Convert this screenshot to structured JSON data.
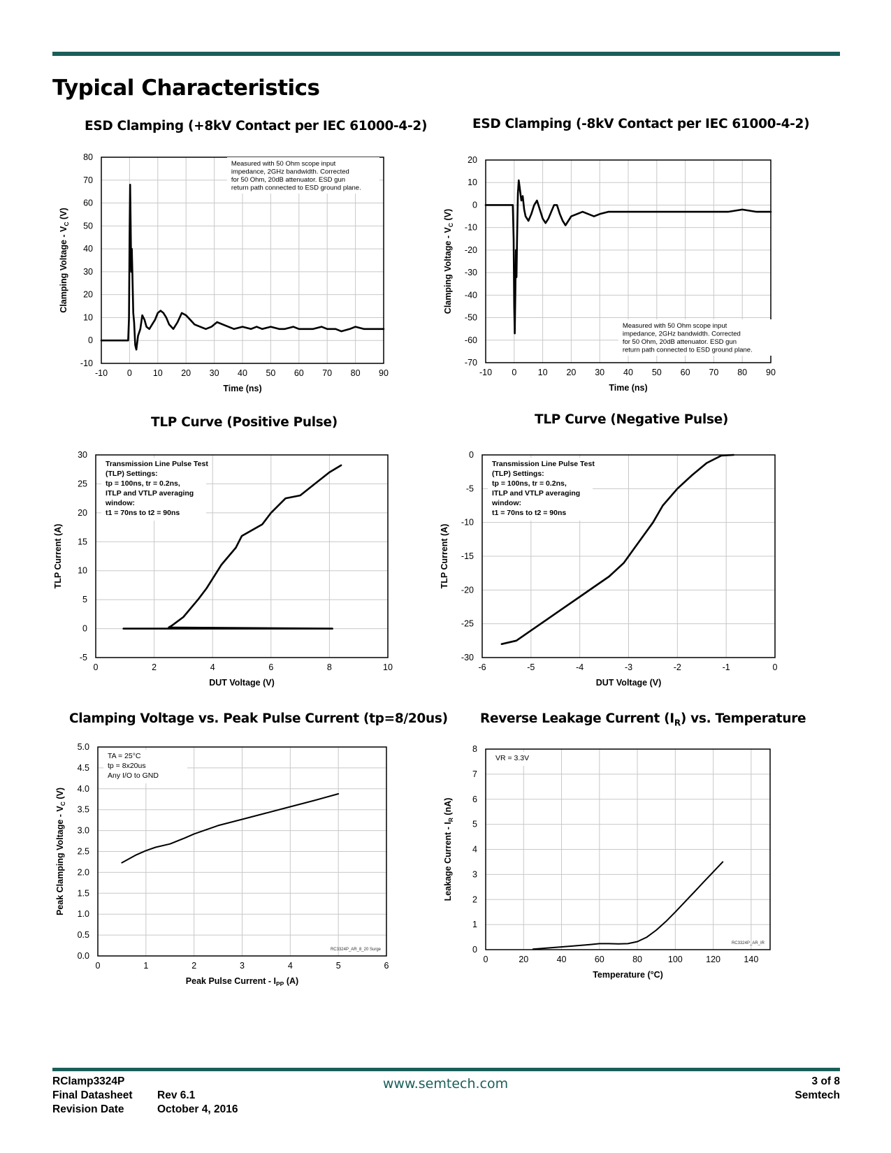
{
  "page": {
    "title": "Typical Characteristics",
    "accent_color": "#1a5e5a"
  },
  "footer": {
    "product": "RClamp3324P",
    "doc_type": "Final Datasheet",
    "rev_label": "Rev 6.1",
    "date_label": "Revision Date",
    "date": "October 4, 2016",
    "website": "www.semtech.com",
    "page_num": "3 of 8",
    "company": "Semtech"
  },
  "chart_data": [
    {
      "id": "esd-pos",
      "type": "line",
      "title": "ESD Clamping (+8kV Contact per IEC 61000-4-2)",
      "xlabel": "Time (ns)",
      "ylabel": "Clamping Voltage - V",
      "ylabel_sub": "C",
      "ylabel_suffix": " (V)",
      "xlim": [
        -10,
        90
      ],
      "ylim": [
        -10,
        80
      ],
      "xticks": [
        -10,
        0,
        10,
        20,
        30,
        40,
        50,
        60,
        70,
        80,
        90
      ],
      "yticks": [
        -10,
        0,
        10,
        20,
        30,
        40,
        50,
        60,
        70,
        80
      ],
      "grid": true,
      "annotation": [
        "Measured with 50 Ohm scope input",
        "impedance, 2GHz bandwidth. Corrected",
        "for 50 Ohm, 20dB attenuator. ESD gun",
        "return path connected to ESD ground plane."
      ],
      "annotation_position": "top-right",
      "series": [
        {
          "x": [
            -10,
            -0.5,
            -0.2,
            0,
            0.2,
            0.4,
            0.6,
            0.8,
            1.0,
            1.3,
            1.6,
            2.0,
            2.4,
            3.0,
            3.8,
            4.5,
            5.3,
            6.0,
            7.0,
            8.0,
            9.0,
            10.0,
            11.0,
            12.0,
            13.0,
            14.0,
            15.5,
            17.0,
            18.5,
            20.0,
            21.5,
            23.0,
            25.0,
            27.0,
            29.0,
            31.0,
            33.0,
            35.0,
            37.0,
            40.0,
            43.0,
            45.0,
            47.0,
            50.0,
            53.0,
            55.0,
            58.0,
            60.0,
            63.0,
            65.0,
            68.0,
            70.0,
            73.0,
            75.0,
            78.0,
            80.0,
            83.0,
            85.0,
            88.0,
            90.0
          ],
          "y": [
            0,
            0,
            10,
            45,
            68,
            50,
            30,
            40,
            30,
            12,
            8,
            -2,
            -4,
            2,
            5,
            11,
            9,
            6,
            5,
            7,
            9,
            12,
            13,
            12,
            10,
            7,
            5,
            8,
            12,
            11,
            9,
            7,
            6,
            5,
            6,
            8,
            7,
            6,
            5,
            6,
            5,
            6,
            5,
            6,
            5,
            5,
            6,
            5,
            5,
            5,
            6,
            5,
            5,
            4,
            5,
            6,
            5,
            5,
            5,
            5
          ]
        }
      ]
    },
    {
      "id": "esd-neg",
      "type": "line",
      "title": "ESD Clamping (-8kV Contact per IEC 61000-4-2)",
      "xlabel": "Time (ns)",
      "ylabel": "Clamping Voltage - V",
      "ylabel_sub": "C",
      "ylabel_suffix": " (V)",
      "xlim": [
        -10,
        90
      ],
      "ylim": [
        -70,
        20
      ],
      "xticks": [
        -10,
        0,
        10,
        20,
        30,
        40,
        50,
        60,
        70,
        80,
        90
      ],
      "yticks": [
        -70,
        -60,
        -50,
        -40,
        -30,
        -20,
        -10,
        0,
        10,
        20
      ],
      "grid": true,
      "annotation": [
        "Measured with 50 Ohm scope input",
        "impedance, 2GHz bandwidth. Corrected",
        "for 50 Ohm, 20dB attenuator. ESD gun",
        "return path connected to ESD ground plane."
      ],
      "annotation_position": "bottom-right",
      "series": [
        {
          "x": [
            -10,
            -0.5,
            -0.2,
            0,
            0.2,
            0.4,
            0.6,
            0.8,
            1.0,
            1.3,
            1.6,
            2.0,
            2.5,
            3.0,
            3.5,
            4.0,
            5.0,
            6.0,
            7.0,
            8.0,
            9.0,
            10.0,
            11.0,
            12.0,
            13.0,
            14.0,
            15.0,
            16.0,
            17.0,
            18.0,
            19.0,
            20.0,
            22.0,
            24.0,
            26.0,
            28.0,
            30.0,
            33.0,
            36.0,
            40.0,
            45.0,
            50.0,
            55.0,
            60.0,
            65.0,
            70.0,
            75.0,
            80.0,
            85.0,
            90.0
          ],
          "y": [
            0,
            0,
            -15,
            -45,
            -57,
            -40,
            -20,
            -32,
            -15,
            5,
            11,
            7,
            2,
            4,
            -2,
            -5,
            -7,
            -4,
            0,
            2,
            -2,
            -6,
            -8,
            -6,
            -3,
            0,
            0,
            -4,
            -7,
            -9,
            -7,
            -5,
            -4,
            -3,
            -4,
            -5,
            -4,
            -3,
            -3,
            -3,
            -3,
            -3,
            -3,
            -3,
            -3,
            -3,
            -3,
            -2,
            -3,
            -3
          ]
        }
      ]
    },
    {
      "id": "tlp-pos",
      "type": "line",
      "title": "TLP Curve (Positive Pulse)",
      "xlabel": "DUT Voltage (V)",
      "ylabel": "TLP Current (A)",
      "xlim": [
        0,
        10
      ],
      "ylim": [
        -5,
        30
      ],
      "xticks": [
        0,
        2,
        4,
        6,
        8,
        10
      ],
      "yticks": [
        -5,
        0,
        5,
        10,
        15,
        20,
        25,
        30
      ],
      "grid": true,
      "annotation": [
        "Transmission Line Pulse Test",
        "(TLP) Settings:",
        "tp = 100ns, tr = 0.2ns,",
        "ITLP and VTLP averaging",
        "window:",
        "t1 = 70ns to t2 = 90ns"
      ],
      "annotation_position": "top-left",
      "series": [
        {
          "x": [
            0.95,
            8.1,
            2.5,
            2.6,
            3.0,
            3.5,
            3.8,
            4.3,
            4.8,
            5.0,
            5.7,
            6.0,
            6.5,
            7.0,
            7.5,
            8.0,
            8.4
          ],
          "y": [
            0,
            0,
            0.2,
            0.5,
            2,
            5,
            7,
            11,
            14,
            16,
            18,
            20,
            22.5,
            23,
            25,
            27,
            28.2
          ]
        }
      ]
    },
    {
      "id": "tlp-neg",
      "type": "line",
      "title": "TLP Curve (Negative Pulse)",
      "xlabel": "DUT Voltage (V)",
      "ylabel": "TLP Current (A)",
      "xlim": [
        -6,
        0
      ],
      "ylim": [
        -30,
        0
      ],
      "xticks": [
        -6,
        -5,
        -4,
        -3,
        -2,
        -1,
        0
      ],
      "yticks": [
        -30,
        -25,
        -20,
        -15,
        -10,
        -5,
        0
      ],
      "grid": true,
      "annotation": [
        "Transmission Line Pulse Test",
        "(TLP) Settings:",
        "tp = 100ns, tr = 0.2ns,",
        "ITLP and VTLP averaging",
        "window:",
        "t1 = 70ns to t2 = 90ns"
      ],
      "annotation_position": "top-left",
      "series": [
        {
          "x": [
            -5.6,
            -5.3,
            -5.0,
            -4.7,
            -4.4,
            -4.0,
            -3.7,
            -3.4,
            -3.1,
            -2.9,
            -2.7,
            -2.5,
            -2.3,
            -2.0,
            -1.7,
            -1.4,
            -1.1,
            -0.85
          ],
          "y": [
            -28,
            -27.5,
            -26,
            -24.5,
            -23,
            -21,
            -19.5,
            -18,
            -16,
            -14,
            -12,
            -10,
            -7.5,
            -5,
            -3,
            -1.2,
            -0.1,
            0
          ]
        }
      ]
    },
    {
      "id": "vc-ipp",
      "type": "line",
      "title": "Clamping Voltage vs. Peak Pulse Current (tp=8/20us)",
      "xlabel": "Peak Pulse Current - I",
      "xlabel_sub": "PP",
      "xlabel_suffix": " (A)",
      "ylabel": "Peak Clamping Voltage - V",
      "ylabel_sub": "C",
      "ylabel_suffix": " (V)",
      "xlim": [
        0,
        6
      ],
      "ylim": [
        0.0,
        5.0
      ],
      "xticks": [
        "0",
        "1",
        "2",
        "3",
        "4",
        "5",
        "6"
      ],
      "yticks": [
        "0.0",
        "0.5",
        "1.0",
        "1.5",
        "2.0",
        "2.5",
        "3.0",
        "3.5",
        "4.0",
        "4.5",
        "5.0"
      ],
      "grid": true,
      "annotation": [
        "TA = 25°C",
        "tp = 8x20us",
        "Any I/O to GND"
      ],
      "annotation_position": "top-left",
      "footnote": "RC3324P_AR_8_20 Surge",
      "series": [
        {
          "x": [
            0.5,
            0.8,
            1.0,
            1.2,
            1.5,
            1.8,
            2.0,
            2.5,
            3.0,
            3.5,
            4.0,
            4.5,
            5.0
          ],
          "y": [
            2.23,
            2.42,
            2.52,
            2.6,
            2.68,
            2.82,
            2.92,
            3.12,
            3.27,
            3.42,
            3.57,
            3.72,
            3.88
          ]
        }
      ]
    },
    {
      "id": "ir-temp",
      "type": "line",
      "title": "Reverse Leakage Current (I",
      "title_sub": "R",
      "title_suffix": ") vs. Temperature",
      "xlabel": "Temperature (°C)",
      "ylabel": "Leakage Current - I",
      "ylabel_sub": "R",
      "ylabel_suffix": " (nA)",
      "xlim": [
        0,
        150
      ],
      "ylim": [
        0,
        8
      ],
      "xticks": [
        0,
        20,
        40,
        60,
        80,
        100,
        120,
        140
      ],
      "yticks": [
        0,
        1,
        2,
        3,
        4,
        5,
        6,
        7,
        8
      ],
      "grid": true,
      "annotation": [
        "VR = 3.3V"
      ],
      "annotation_position": "top-left",
      "footnote": "RC3324P_AR_IR",
      "series": [
        {
          "x": [
            25,
            35,
            45,
            55,
            60,
            65,
            70,
            75,
            80,
            85,
            90,
            95,
            100,
            105,
            110,
            115,
            120,
            125
          ],
          "y": [
            0.02,
            0.08,
            0.14,
            0.2,
            0.24,
            0.24,
            0.23,
            0.24,
            0.32,
            0.5,
            0.78,
            1.12,
            1.5,
            1.9,
            2.3,
            2.7,
            3.1,
            3.5
          ]
        }
      ]
    }
  ]
}
